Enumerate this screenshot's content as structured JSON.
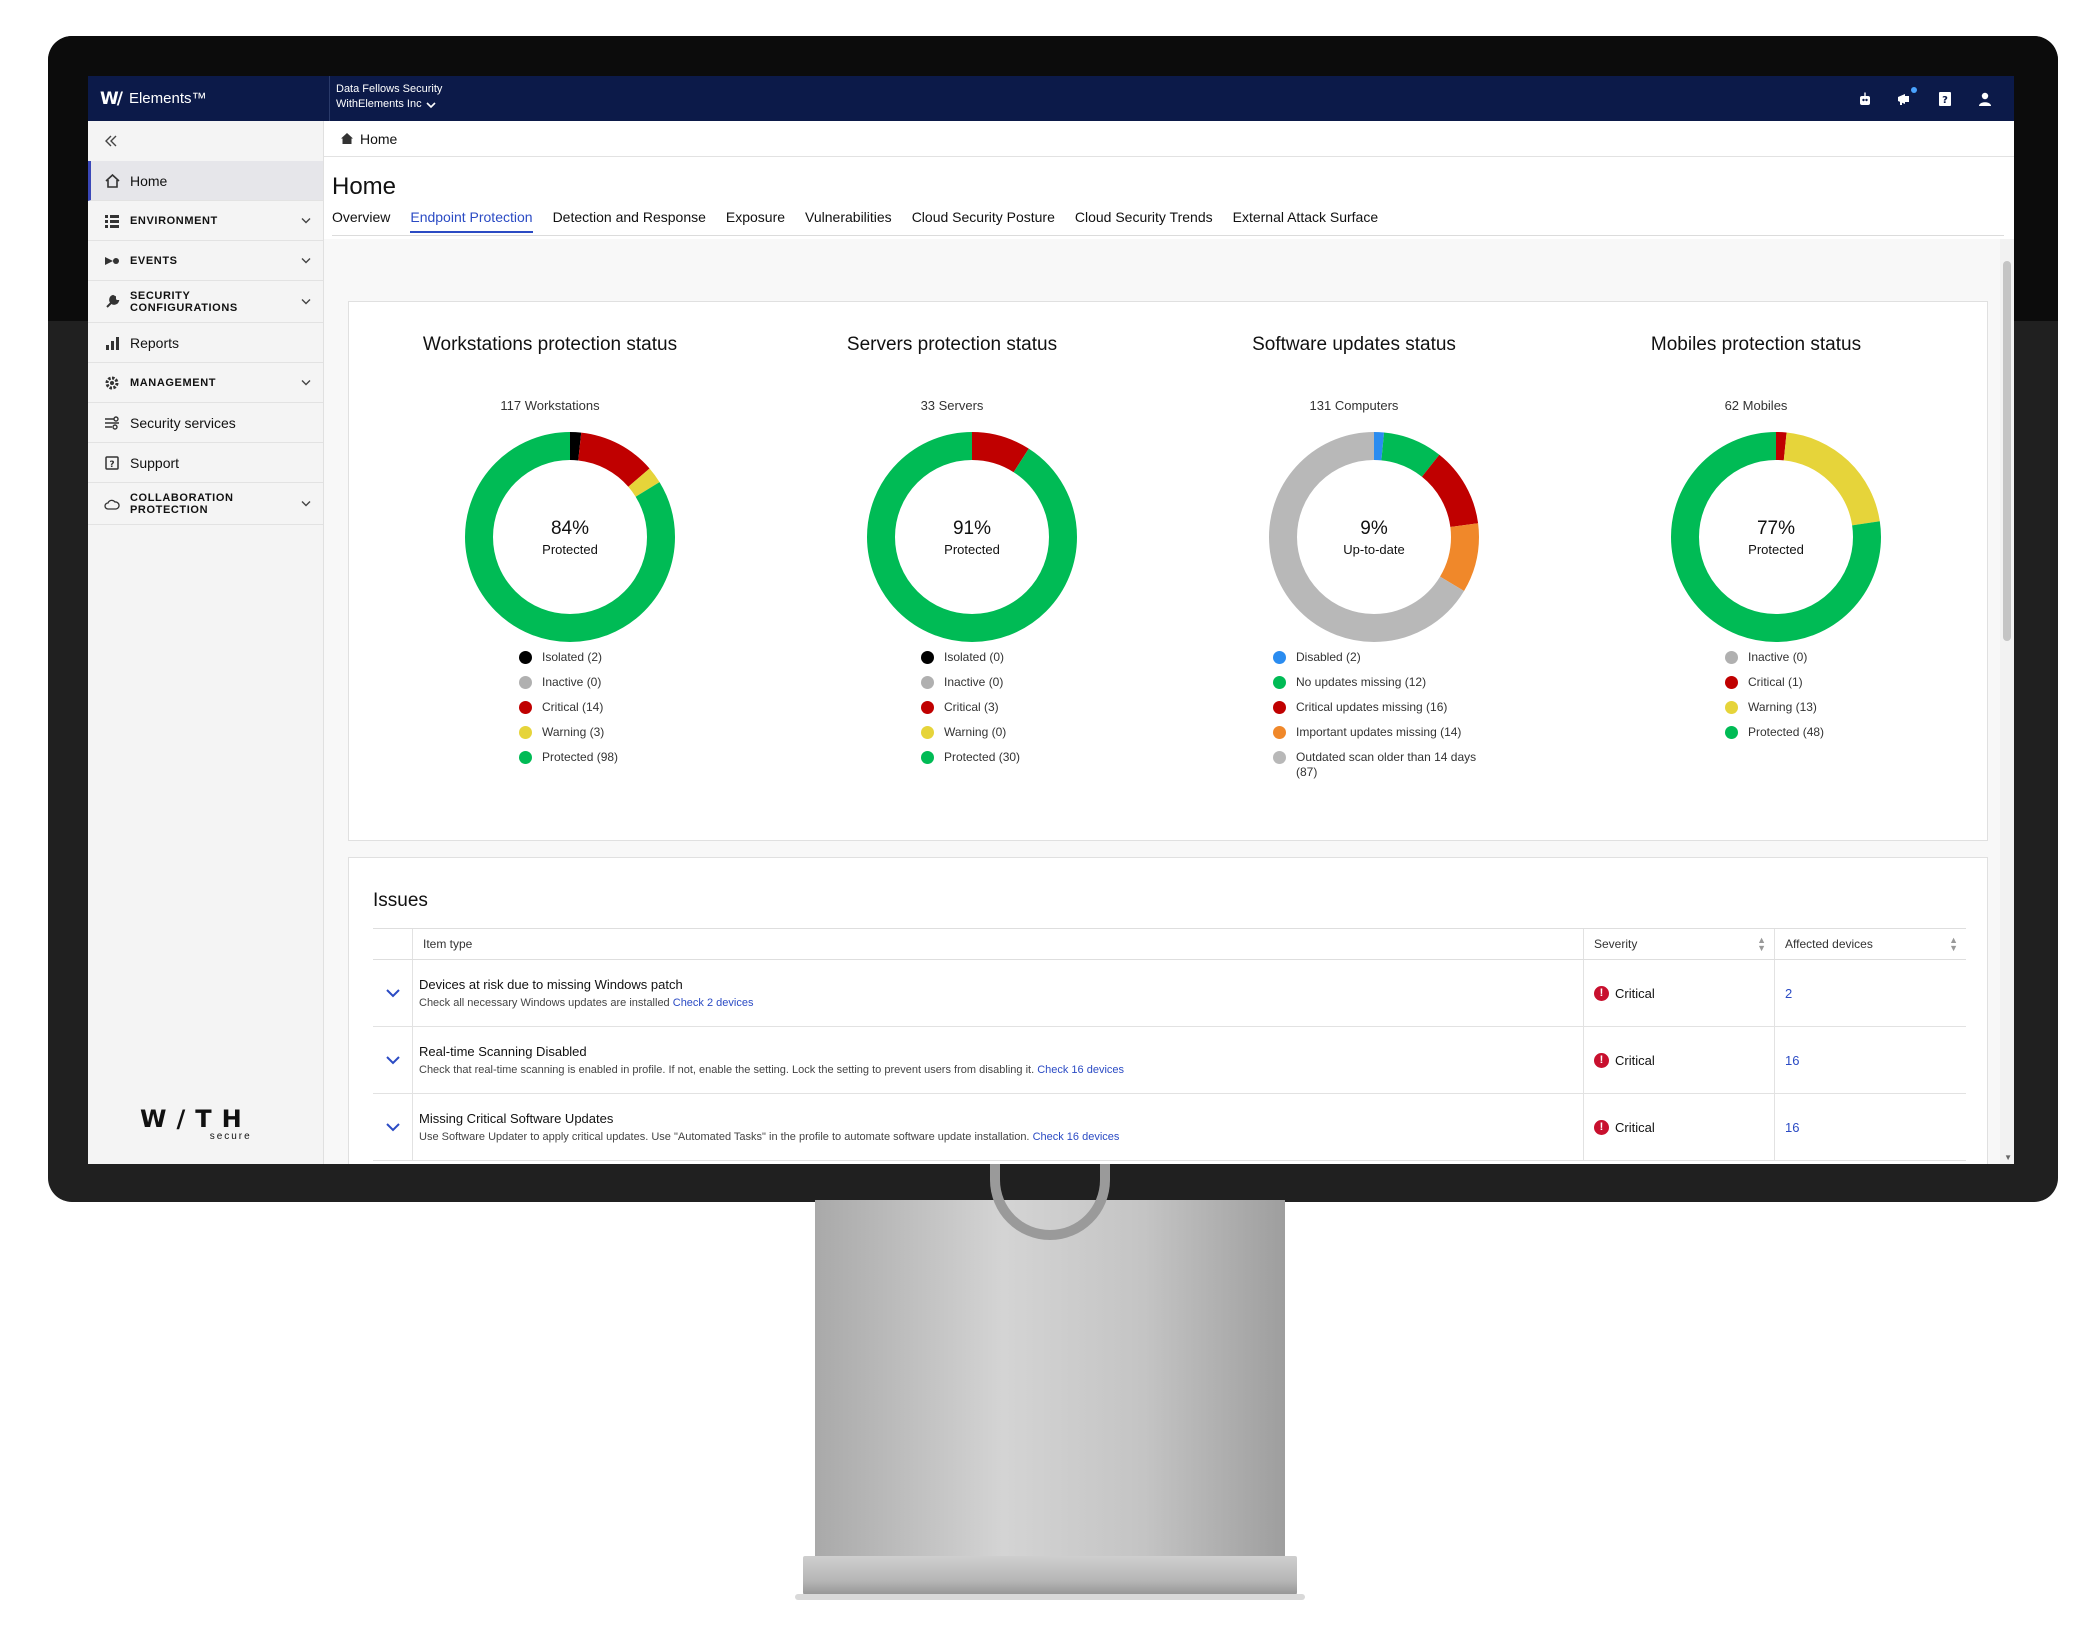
{
  "topbar": {
    "brand_mark": "W/",
    "brand_name": "Elements™",
    "org_name": "Data Fellows Security",
    "org_sub": "WithElements Inc"
  },
  "sidebar": {
    "items": [
      {
        "label": "Home",
        "icon": "home-icon",
        "active": true,
        "section": false
      },
      {
        "label": "ENVIRONMENT",
        "icon": "list-icon",
        "section": true
      },
      {
        "label": "EVENTS",
        "icon": "events-icon",
        "section": true
      },
      {
        "label": "SECURITY CONFIGURATIONS",
        "icon": "wrench-icon",
        "section": true
      },
      {
        "label": "Reports",
        "icon": "bar-chart-icon",
        "section": false
      },
      {
        "label": "MANAGEMENT",
        "icon": "gear-icon",
        "section": true
      },
      {
        "label": "Security services",
        "icon": "services-icon",
        "section": false
      },
      {
        "label": "Support",
        "icon": "support-icon",
        "section": false
      },
      {
        "label": "COLLABORATION PROTECTION",
        "icon": "cloud-icon",
        "section": true
      }
    ],
    "logo_main": "W/TH",
    "logo_sub": "secure"
  },
  "breadcrumb": {
    "home": "Home"
  },
  "page": {
    "title": "Home",
    "tabs": [
      {
        "label": "Overview",
        "active": false
      },
      {
        "label": "Endpoint Protection",
        "active": true
      },
      {
        "label": "Detection and Response",
        "active": false
      },
      {
        "label": "Exposure",
        "active": false
      },
      {
        "label": "Vulnerabilities",
        "active": false
      },
      {
        "label": "Cloud Security Posture",
        "active": false
      },
      {
        "label": "Cloud Security Trends",
        "active": false
      },
      {
        "label": "External Attack Surface",
        "active": false
      }
    ]
  },
  "chart_data": [
    {
      "type": "pie",
      "title": "Workstations protection status",
      "count_label": "117 Workstations",
      "center_value": "84%",
      "center_label": "Protected",
      "categories": [
        "Isolated (2)",
        "Inactive (0)",
        "Critical (14)",
        "Warning (3)",
        "Protected (98)"
      ],
      "values": [
        2,
        0,
        14,
        3,
        98
      ],
      "colors": [
        "#000000",
        "#b0b0b0",
        "#c00000",
        "#e6d43a",
        "#00bb55"
      ]
    },
    {
      "type": "pie",
      "title": "Servers protection status",
      "count_label": "33 Servers",
      "center_value": "91%",
      "center_label": "Protected",
      "categories": [
        "Isolated (0)",
        "Inactive (0)",
        "Critical (3)",
        "Warning (0)",
        "Protected (30)"
      ],
      "values": [
        0,
        0,
        3,
        0,
        30
      ],
      "colors": [
        "#000000",
        "#b0b0b0",
        "#c00000",
        "#e6d43a",
        "#00bb55"
      ]
    },
    {
      "type": "pie",
      "title": "Software updates status",
      "count_label": "131 Computers",
      "center_value": "9%",
      "center_label": "Up-to-date",
      "categories": [
        "Disabled (2)",
        "No updates missing (12)",
        "Critical updates missing (16)",
        "Important updates missing (14)",
        "Outdated scan older than 14 days (87)"
      ],
      "values": [
        2,
        12,
        16,
        14,
        87
      ],
      "colors": [
        "#2a8cf0",
        "#00bb55",
        "#c00000",
        "#f0882a",
        "#b8b8b8"
      ]
    },
    {
      "type": "pie",
      "title": "Mobiles protection status",
      "count_label": "62 Mobiles",
      "center_value": "77%",
      "center_label": "Protected",
      "categories": [
        "Inactive (0)",
        "Critical (1)",
        "Warning (13)",
        "Protected (48)"
      ],
      "values": [
        0,
        1,
        13,
        48
      ],
      "colors": [
        "#b0b0b0",
        "#c00000",
        "#e6d43a",
        "#00bb55"
      ]
    }
  ],
  "issues": {
    "title": "Issues",
    "columns": [
      "Item type",
      "Severity",
      "Affected devices"
    ],
    "rows": [
      {
        "title": "Devices at risk due to missing Windows patch",
        "desc": "Check all necessary Windows updates are installed",
        "link": "Check 2 devices",
        "severity": "Critical",
        "affected": "2"
      },
      {
        "title": "Real-time Scanning Disabled",
        "desc": "Check that real-time scanning is enabled in profile. If not, enable the setting. Lock the setting to prevent users from disabling it.",
        "link": "Check 16 devices",
        "severity": "Critical",
        "affected": "16"
      },
      {
        "title": "Missing Critical Software Updates",
        "desc": "Use Software Updater to apply critical updates. Use \"Automated Tasks\" in the profile to automate software update installation.",
        "link": "Check 16 devices",
        "severity": "Critical",
        "affected": "16"
      }
    ]
  },
  "colors": {
    "topbar": "#0c1a49",
    "accent": "#2b4bc4",
    "critical": "#c8102e"
  }
}
